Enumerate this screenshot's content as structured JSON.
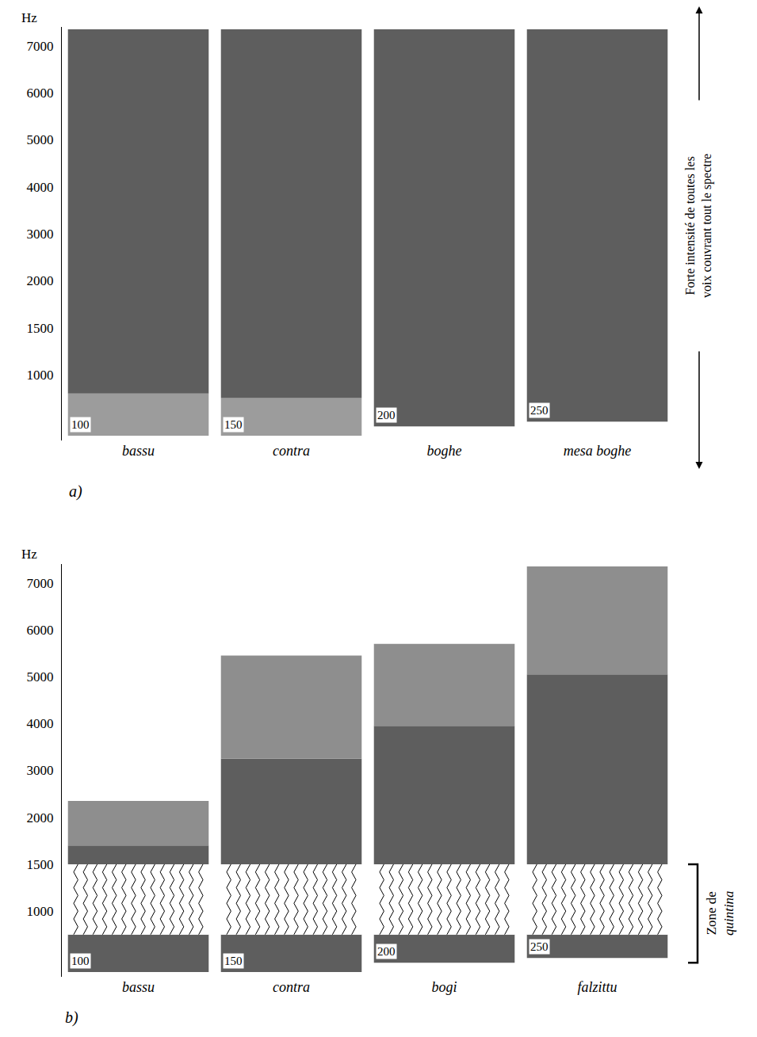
{
  "chart_data": [
    {
      "type": "bar",
      "stacked": true,
      "panel": "a)",
      "y_label": "Hz",
      "ylim": [
        300,
        7400
      ],
      "yticks": [
        1000,
        1500,
        2000,
        3000,
        4000,
        5000,
        6000,
        7000
      ],
      "categories": [
        "bassu",
        "contra",
        "boghe",
        "mesa boghe"
      ],
      "f0": [
        100,
        150,
        200,
        250
      ],
      "bases": [
        350,
        350,
        450,
        500
      ],
      "segments": [
        [
          {
            "value": 450,
            "color": "#9c9c9c"
          },
          {
            "value": 6550,
            "color": "#5e5e5e"
          }
        ],
        [
          {
            "value": 400,
            "color": "#9c9c9c"
          },
          {
            "value": 6600,
            "color": "#5e5e5e"
          }
        ],
        [
          {
            "value": 6900,
            "color": "#5e5e5e"
          }
        ],
        [
          {
            "value": 6850,
            "color": "#5e5e5e"
          }
        ]
      ],
      "annotation": "Forte intensité de toutes les voix couvrant tout le spectre"
    },
    {
      "type": "bar",
      "stacked": true,
      "panel": "b)",
      "y_label": "Hz",
      "ylim": [
        300,
        7400
      ],
      "yticks": [
        1000,
        1500,
        2000,
        3000,
        4000,
        5000,
        6000,
        7000
      ],
      "categories": [
        "bassu",
        "contra",
        "bogi",
        "falzittu"
      ],
      "f0": [
        100,
        150,
        200,
        250
      ],
      "bases": [
        350,
        350,
        450,
        500
      ],
      "segments": [
        [
          {
            "value": 400,
            "color": "#5e5e5e"
          },
          {
            "value": 750,
            "color": "#ffffff",
            "marker": "zigzag"
          },
          {
            "value": 200,
            "color": "#5e5e5e"
          },
          {
            "value": 650,
            "color": "#8e8e8e"
          }
        ],
        [
          {
            "value": 400,
            "color": "#5e5e5e"
          },
          {
            "value": 750,
            "color": "#ffffff",
            "marker": "zigzag"
          },
          {
            "value": 1750,
            "color": "#5e5e5e"
          },
          {
            "value": 2200,
            "color": "#8e8e8e"
          }
        ],
        [
          {
            "value": 300,
            "color": "#5e5e5e"
          },
          {
            "value": 750,
            "color": "#ffffff",
            "marker": "zigzag"
          },
          {
            "value": 2450,
            "color": "#5e5e5e"
          },
          {
            "value": 1750,
            "color": "#8e8e8e"
          }
        ],
        [
          {
            "value": 250,
            "color": "#5e5e5e"
          },
          {
            "value": 750,
            "color": "#ffffff",
            "marker": "zigzag"
          },
          {
            "value": 3550,
            "color": "#5e5e5e"
          },
          {
            "value": 2300,
            "color": "#8e8e8e"
          }
        ]
      ],
      "quintina_label": "Zone de quintina",
      "quintina_bracket": [
        450,
        1500
      ]
    }
  ]
}
